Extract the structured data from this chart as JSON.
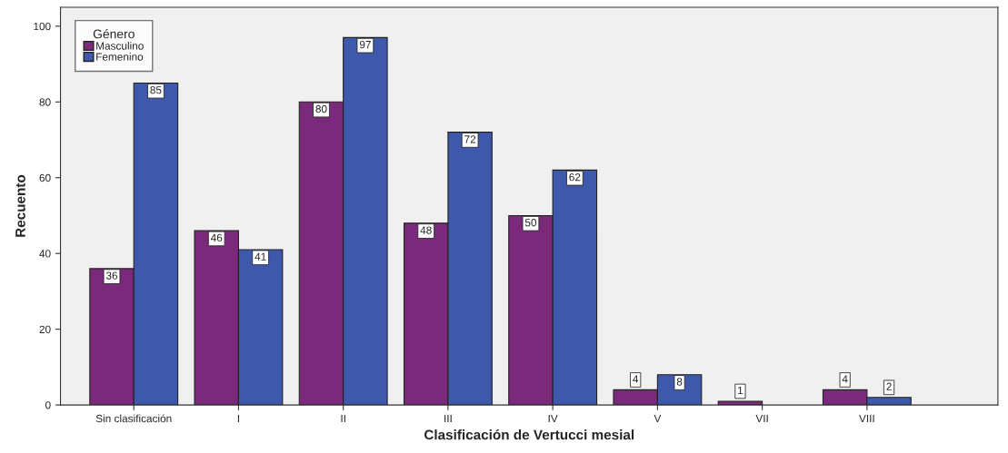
{
  "chart_data": {
    "type": "bar",
    "xlabel": "Clasificación de Vertucci mesial",
    "ylabel": "Recuento",
    "legend_title": "Género",
    "categories": [
      "Sin clasificación",
      "I",
      "II",
      "III",
      "IV",
      "V",
      "VII",
      "VIII"
    ],
    "series": [
      {
        "name": "Masculino",
        "color": "#7b2a7b",
        "values": [
          36,
          46,
          80,
          48,
          50,
          4,
          1,
          4
        ]
      },
      {
        "name": "Femenino",
        "color": "#3e58ac",
        "values": [
          85,
          41,
          97,
          72,
          62,
          8,
          null,
          2
        ]
      }
    ],
    "ylim": [
      0,
      105
    ],
    "yticks": [
      0,
      20,
      40,
      60,
      80,
      100
    ],
    "grid": false,
    "legend": "top left",
    "data_labels": true
  }
}
